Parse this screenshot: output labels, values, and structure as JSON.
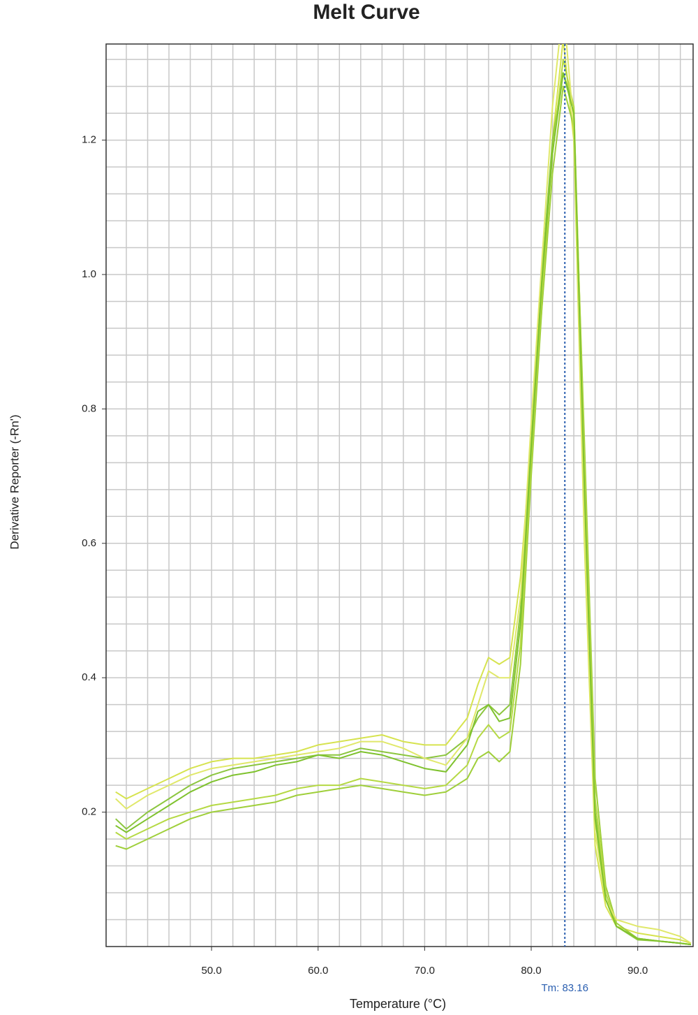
{
  "chart_data": {
    "type": "line",
    "title": "Melt Curve",
    "x_label": "Temperature (°C)",
    "y_label": "Derivative Reporter (-Rn')",
    "x": [
      41,
      42,
      44,
      46,
      48,
      50,
      52,
      54,
      56,
      58,
      60,
      62,
      64,
      66,
      68,
      70,
      72,
      74,
      75,
      76,
      77,
      78,
      79,
      80,
      81,
      82,
      83,
      84,
      85,
      86,
      87,
      88,
      90,
      92,
      94,
      95
    ],
    "series": [
      {
        "color": "#d6e34f",
        "values": [
          0.23,
          0.22,
          0.235,
          0.25,
          0.265,
          0.275,
          0.28,
          0.28,
          0.285,
          0.29,
          0.3,
          0.305,
          0.31,
          0.315,
          0.305,
          0.3,
          0.3,
          0.34,
          0.39,
          0.43,
          0.42,
          0.43,
          0.55,
          0.75,
          0.95,
          1.2,
          1.35,
          1.2,
          0.6,
          0.15,
          0.06,
          0.03,
          0.02,
          0.015,
          0.01,
          0.005
        ]
      },
      {
        "color": "#8cc63f",
        "values": [
          0.19,
          0.175,
          0.2,
          0.22,
          0.24,
          0.255,
          0.265,
          0.27,
          0.275,
          0.28,
          0.285,
          0.285,
          0.295,
          0.29,
          0.285,
          0.28,
          0.285,
          0.31,
          0.34,
          0.36,
          0.345,
          0.36,
          0.5,
          0.75,
          1.0,
          1.2,
          1.3,
          1.25,
          0.7,
          0.2,
          0.08,
          0.03,
          0.01,
          0.008,
          0.005,
          0.003
        ]
      },
      {
        "color": "#9fcf3a",
        "values": [
          0.15,
          0.145,
          0.16,
          0.175,
          0.19,
          0.2,
          0.205,
          0.21,
          0.215,
          0.225,
          0.23,
          0.235,
          0.24,
          0.235,
          0.23,
          0.225,
          0.23,
          0.25,
          0.28,
          0.29,
          0.275,
          0.29,
          0.42,
          0.7,
          0.95,
          1.15,
          1.28,
          1.22,
          0.75,
          0.25,
          0.09,
          0.035,
          0.012,
          0.008,
          0.005,
          0.003
        ]
      },
      {
        "color": "#b5d944",
        "values": [
          0.17,
          0.16,
          0.175,
          0.19,
          0.2,
          0.21,
          0.215,
          0.22,
          0.225,
          0.235,
          0.24,
          0.24,
          0.25,
          0.245,
          0.24,
          0.235,
          0.24,
          0.27,
          0.31,
          0.33,
          0.31,
          0.32,
          0.45,
          0.72,
          0.98,
          1.18,
          1.32,
          1.25,
          0.72,
          0.22,
          0.08,
          0.03,
          0.012,
          0.008,
          0.005,
          0.003
        ]
      },
      {
        "color": "#e0e86a",
        "values": [
          0.22,
          0.205,
          0.225,
          0.24,
          0.255,
          0.265,
          0.27,
          0.275,
          0.28,
          0.285,
          0.29,
          0.295,
          0.305,
          0.305,
          0.295,
          0.28,
          0.27,
          0.31,
          0.36,
          0.41,
          0.4,
          0.4,
          0.52,
          0.78,
          1.02,
          1.25,
          1.4,
          1.22,
          0.62,
          0.17,
          0.07,
          0.04,
          0.03,
          0.025,
          0.015,
          0.005
        ]
      },
      {
        "color": "#7fc22e",
        "values": [
          0.18,
          0.17,
          0.19,
          0.21,
          0.23,
          0.245,
          0.255,
          0.26,
          0.27,
          0.275,
          0.285,
          0.28,
          0.29,
          0.285,
          0.275,
          0.265,
          0.26,
          0.3,
          0.35,
          0.36,
          0.335,
          0.34,
          0.48,
          0.74,
          0.99,
          1.18,
          1.3,
          1.24,
          0.68,
          0.19,
          0.07,
          0.03,
          0.012,
          0.008,
          0.005,
          0.003
        ]
      }
    ],
    "xlim": [
      40.1,
      95.2
    ],
    "ylim": [
      0,
      1.343
    ],
    "xticks": [
      {
        "value": 50,
        "label": "50.0"
      },
      {
        "value": 60,
        "label": "60.0"
      },
      {
        "value": 70,
        "label": "70.0"
      },
      {
        "value": 80,
        "label": "80.0"
      },
      {
        "value": 90,
        "label": "90.0"
      }
    ],
    "yticks": [
      0.2,
      0.4,
      0.6,
      0.8,
      {
        "value": 1,
        "label": "1.0"
      },
      1.2
    ],
    "x_minor_ticks": [
      42,
      44,
      46,
      48,
      50,
      52,
      54,
      56,
      58,
      60,
      62,
      64,
      66,
      68,
      70,
      72,
      74,
      76,
      78,
      80,
      82,
      84,
      86,
      88,
      90,
      92,
      94
    ],
    "y_minor_ticks": [
      0.04,
      0.08,
      0.12,
      0.16,
      0.2,
      0.24,
      0.28,
      0.32,
      0.36,
      0.4,
      0.44,
      0.48,
      0.52,
      0.56,
      0.6,
      0.64,
      0.68,
      0.72,
      0.76,
      0.8,
      0.84,
      0.88,
      0.92,
      0.96,
      1,
      1.04,
      1.08,
      1.12,
      1.16,
      1.2,
      1.24,
      1.28,
      1.32
    ],
    "grid": true,
    "tm": {
      "value": 83.16,
      "label": "Tm: 83.16",
      "color": "#2b5fb0"
    }
  }
}
